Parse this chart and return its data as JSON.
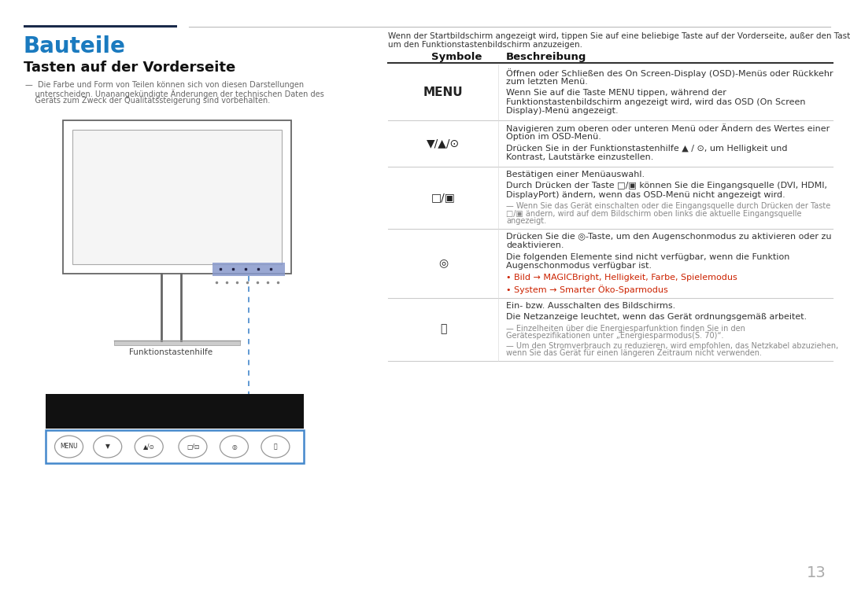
{
  "bg_color": "#ffffff",
  "page_number": "13",
  "title_bauteile": "Bauteile",
  "title_color": "#1a7abf",
  "subtitle": "Tasten auf der Vorderseite",
  "funktionstastenhilfe": "Funktionstastenhilfe",
  "col_symbole": "Symbole",
  "col_beschreibung": "Beschreibung",
  "header_intro_line1": "Wenn der Startbildschirm angezeigt wird, tippen Sie auf eine beliebige Taste auf der Vorderseite, außer den Tasten ▼ und ⏻,",
  "header_intro_line2": "um den Funktionstastenbildschirm anzuzeigen.",
  "note_line1": "—  Die Farbe und Form von Teilen können sich von diesen Darstellungen",
  "note_line2": "    unterscheiden. Unanangekündigte Änderungen der technischen Daten des",
  "note_line3": "    Geräts zum Zweck der Qualitätssteigerung sind vorbehalten.",
  "rows": [
    {
      "symbol": "MENU",
      "symbol_bold": true,
      "desc_blocks": [
        {
          "text": "Öffnen oder Schließen des On Screen-Display (OSD)-Menüs oder Rückkehr zum letzten Menü.",
          "color": "#333333",
          "small": false,
          "italic": false
        },
        {
          "text": "Wenn Sie auf die Taste MENU tippen, während der Funktionstastenbildschirm angezeigt wird, wird das OSD (On Screen Display)-Menü angezeigt.",
          "color": "#333333",
          "small": false,
          "italic": false
        }
      ]
    },
    {
      "symbol": "▼/▲/⊙",
      "symbol_bold": false,
      "desc_blocks": [
        {
          "text": "Navigieren zum oberen oder unteren Menü oder Ändern des Wertes einer Option im OSD-Menü.",
          "color": "#333333",
          "small": false,
          "italic": false
        },
        {
          "text": "Drücken Sie in der Funktionstastenhilfe ▲ / ⊙, um Helligkeit und Kontrast, Lautstärke einzustellen.",
          "color": "#333333",
          "small": false,
          "italic": false
        }
      ]
    },
    {
      "symbol": "□/▣",
      "symbol_bold": false,
      "desc_blocks": [
        {
          "text": "Bestätigen einer Menüauswahl.",
          "color": "#333333",
          "small": false,
          "italic": false
        },
        {
          "text": "Durch Drücken der Taste □/▣ können Sie die Eingangsquelle (DVI, HDMI, DisplayPort) ändern, wenn das OSD-Menü nicht angezeigt wird.",
          "color": "#333333",
          "small": false,
          "italic": false
        },
        {
          "text": "— Wenn Sie das Gerät einschalten oder die Eingangsquelle durch Drücken der Taste □/▣ ändern, wird auf dem Bildschirm oben links die aktuelle Eingangsquelle angezeigt.",
          "color": "#888888",
          "small": true,
          "italic": false
        }
      ]
    },
    {
      "symbol": "◎",
      "symbol_bold": false,
      "symbol_eye": true,
      "desc_blocks": [
        {
          "text": "Drücken Sie die ◎-Taste, um den Augenschonmodus zu aktivieren oder zu deaktivieren.",
          "color": "#333333",
          "small": false,
          "italic": false
        },
        {
          "text": "Die folgenden Elemente sind nicht verfügbar, wenn die Funktion Augenschonmodus verfügbar ist.",
          "color": "#333333",
          "small": false,
          "italic": false
        },
        {
          "text": "•  Bild → MAGICBright, Helligkeit, Farbe, Spielemodus",
          "color": "#cc2200",
          "small": false,
          "italic": false
        },
        {
          "text": "•  System → Smarter Öko-Sparmodus",
          "color": "#cc2200",
          "small": false,
          "italic": false
        }
      ]
    },
    {
      "symbol": "⏻",
      "symbol_bold": false,
      "desc_blocks": [
        {
          "text": "Ein- bzw. Ausschalten des Bildschirms.",
          "color": "#333333",
          "small": false,
          "italic": false
        },
        {
          "text": "Die Netzanzeige leuchtet, wenn das Gerät ordnungsgemäß arbeitet.",
          "color": "#333333",
          "small": false,
          "italic": false
        },
        {
          "text": "— Einzelheiten über die Energiesparfunktion finden Sie in den Gerätespezifikationen unter „Energiesparmodus(S. 70)“.",
          "color": "#888888",
          "small": true,
          "italic": false
        },
        {
          "text": "— Um den Stromverbrauch zu reduzieren, wird empfohlen, das Netzkabel abzuziehen, wenn Sie das Gerät für einen längeren Zeitraum nicht verwenden.",
          "color": "#888888",
          "small": true,
          "italic": false
        }
      ]
    }
  ]
}
